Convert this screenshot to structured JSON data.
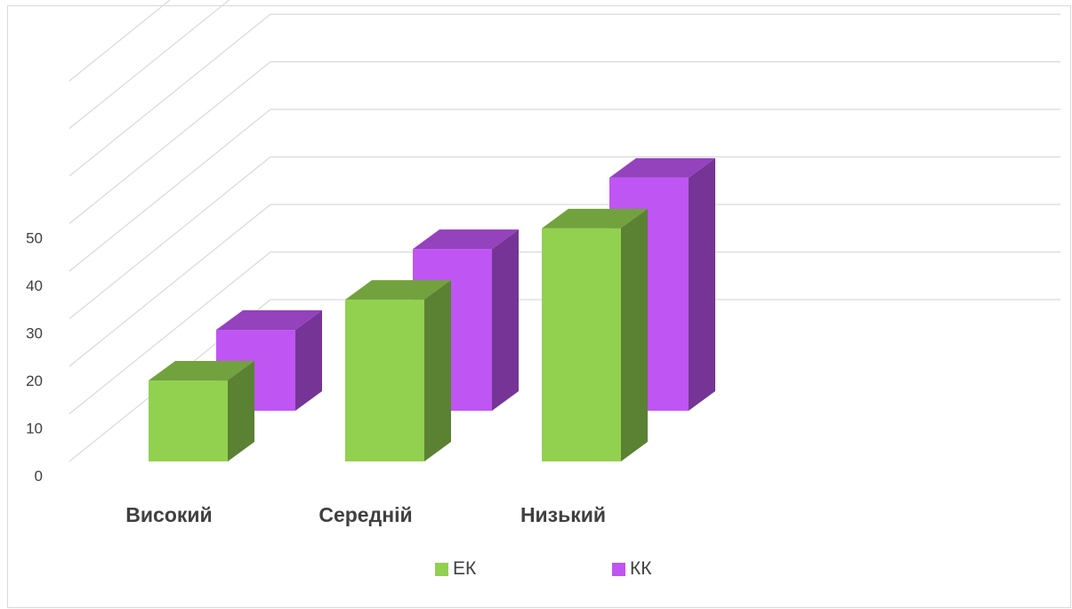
{
  "chart_data": {
    "type": "bar",
    "categories": [
      "Високий",
      "Середній",
      "Низький"
    ],
    "series": [
      {
        "name": "ЕК",
        "values": [
          17,
          34,
          49
        ],
        "color": "#92d050"
      },
      {
        "name": "КК",
        "values": [
          17,
          34,
          49
        ],
        "color": "#bf55f2"
      }
    ],
    "yticks": [
      0,
      10,
      20,
      30,
      40,
      50
    ],
    "ylim": [
      0,
      50
    ],
    "grid": true,
    "legend_position": "bottom",
    "three_d": true
  }
}
